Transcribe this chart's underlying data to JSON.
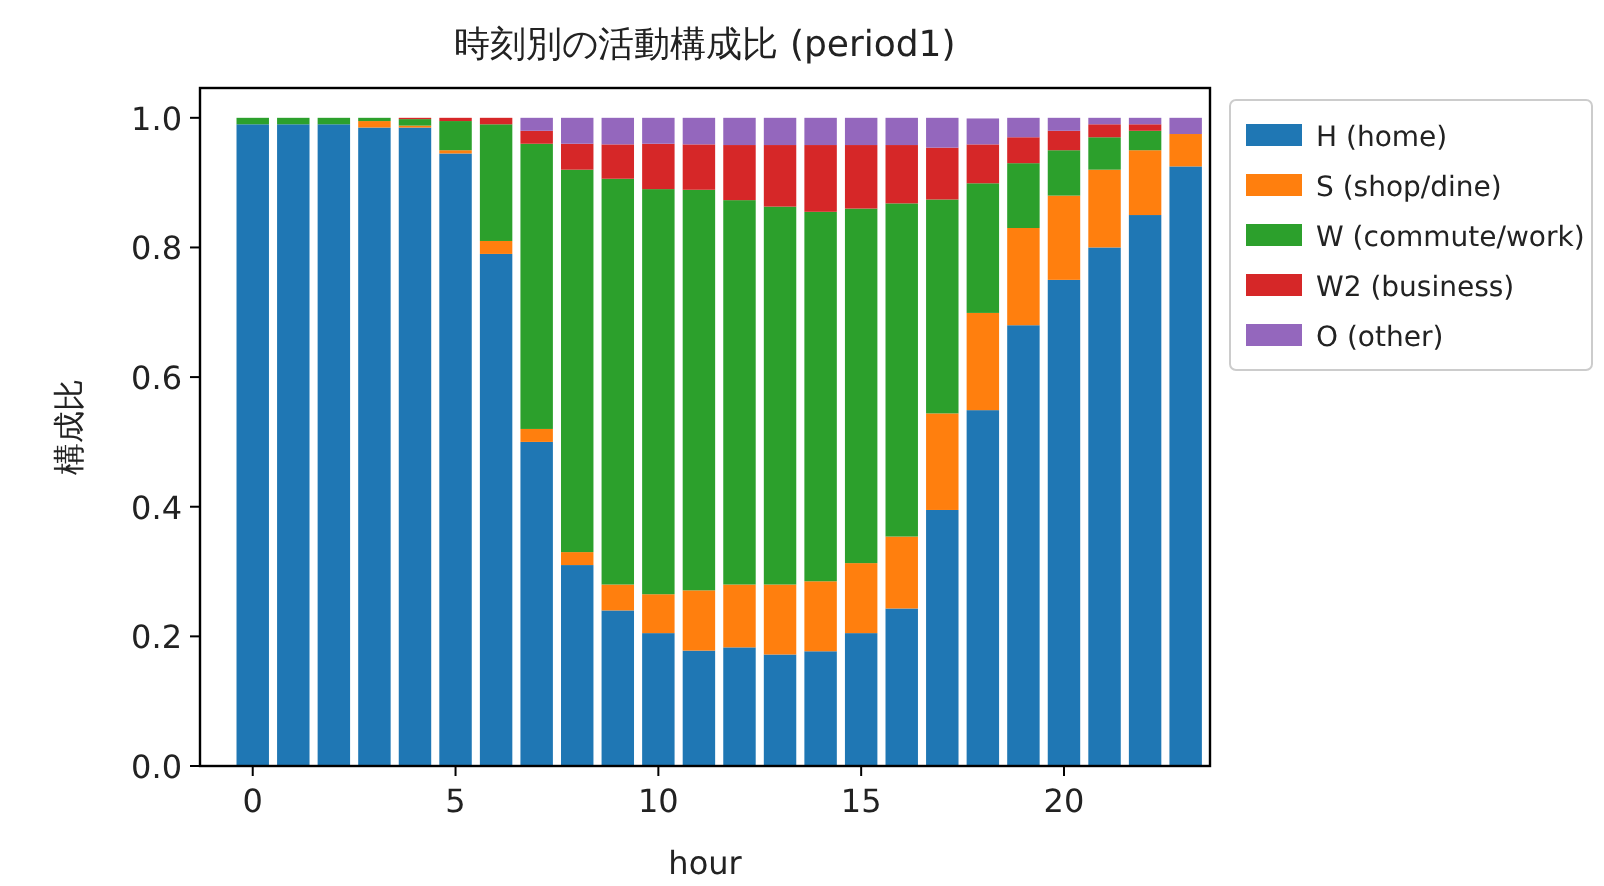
{
  "chart_data": {
    "type": "bar",
    "stacked": true,
    "title": "時刻別の活動構成比 (period1)",
    "xlabel": "hour",
    "ylabel": "構成比",
    "x": [
      0,
      1,
      2,
      3,
      4,
      5,
      6,
      7,
      8,
      9,
      10,
      11,
      12,
      13,
      14,
      15,
      16,
      17,
      18,
      19,
      20,
      21,
      22,
      23
    ],
    "xlim": [
      -1.3,
      23.6
    ],
    "xticks": [
      0,
      5,
      10,
      15,
      20
    ],
    "ylim": [
      0,
      1.046
    ],
    "yticks": [
      {
        "value": 0,
        "label": "0.0"
      },
      0.2,
      0.4,
      0.6,
      0.8,
      {
        "value": 1,
        "label": "1.0"
      }
    ],
    "legend": "right",
    "series": [
      {
        "name": "H (home)",
        "color": "#1f77b4",
        "values": [
          0.99,
          0.99,
          0.99,
          0.985,
          0.985,
          0.945,
          0.79,
          0.5,
          0.31,
          0.24,
          0.205,
          0.178,
          0.183,
          0.172,
          0.177,
          0.205,
          0.243,
          0.395,
          0.549,
          0.68,
          0.75,
          0.8,
          0.85,
          0.925
        ]
      },
      {
        "name": "S (shop/dine)",
        "color": "#ff7f0e",
        "values": [
          0,
          0,
          0,
          0.01,
          0.003,
          0.005,
          0.02,
          0.02,
          0.02,
          0.04,
          0.06,
          0.093,
          0.097,
          0.108,
          0.108,
          0.108,
          0.111,
          0.149,
          0.15,
          0.15,
          0.13,
          0.12,
          0.1,
          0.05
        ]
      },
      {
        "name": "W (commute/work)",
        "color": "#2ca02c",
        "values": [
          0.01,
          0.01,
          0.01,
          0.005,
          0.01,
          0.045,
          0.18,
          0.44,
          0.59,
          0.626,
          0.625,
          0.618,
          0.593,
          0.583,
          0.57,
          0.547,
          0.514,
          0.33,
          0.2,
          0.1,
          0.07,
          0.05,
          0.03,
          0
        ]
      },
      {
        "name": "W2 (business)",
        "color": "#d62728",
        "values": [
          0,
          0,
          0,
          0,
          0.002,
          0.005,
          0.01,
          0.02,
          0.04,
          0.053,
          0.07,
          0.07,
          0.085,
          0.095,
          0.103,
          0.098,
          0.09,
          0.08,
          0.06,
          0.04,
          0.03,
          0.02,
          0.01,
          0
        ]
      },
      {
        "name": "O (other)",
        "color": "#9467bd",
        "values": [
          0,
          0,
          0,
          0,
          0,
          0,
          0,
          0.02,
          0.04,
          0.041,
          0.04,
          0.041,
          0.042,
          0.042,
          0.042,
          0.042,
          0.042,
          0.046,
          0.04,
          0.03,
          0.02,
          0.01,
          0.01,
          0.025
        ]
      }
    ]
  }
}
